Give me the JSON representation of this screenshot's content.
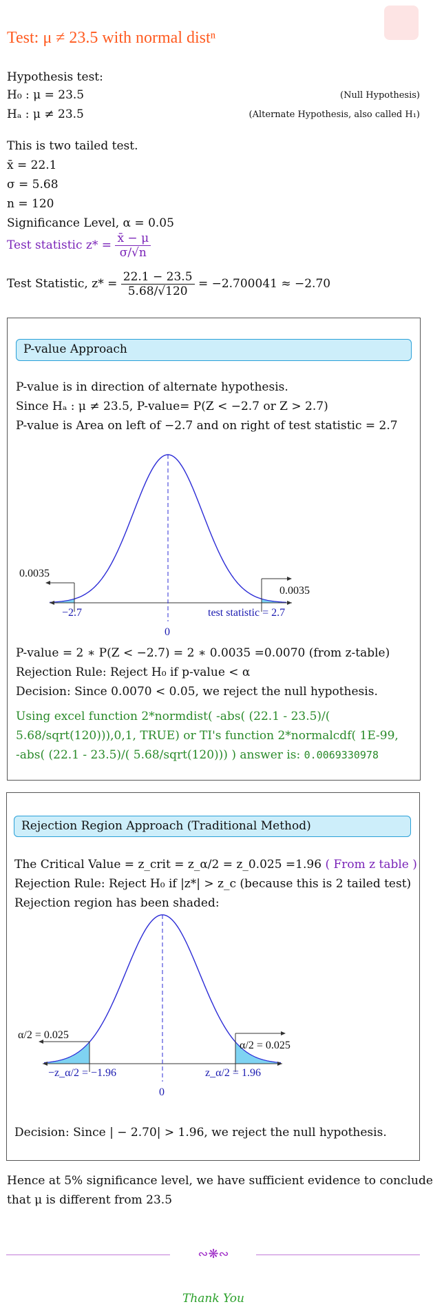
{
  "title": "Test: μ ≠ 23.5 with normal distⁿ",
  "hypothesis": {
    "heading": "Hypothesis test:",
    "h0": "H₀ : μ = 23.5",
    "h0_note": "(Null Hypothesis)",
    "ha": "Hₐ : μ ≠ 23.5",
    "ha_note": "(Alternate Hypothesis, also called H₁)"
  },
  "givens": {
    "tail": "This is two tailed test.",
    "xbar": "x̄ = 22.1",
    "sigma": "σ = 5.68",
    "n": "n = 120",
    "alpha": "Significance Level, α = 0.05"
  },
  "formula": {
    "label": "Test statistic z* =",
    "num": "x̄ − μ",
    "den": "σ/√n"
  },
  "stat": {
    "label": "Test Statistic, z* =",
    "num": "22.1 − 23.5",
    "den": "5.68/√120",
    "result": "= −2.700041 ≈ −2.70"
  },
  "pvalue_section": {
    "header": "P-value Approach",
    "l1": "P-value is in direction of alternate hypothesis.",
    "l2": "Since Hₐ : μ ≠ 23.5, P-value= P(Z < −2.7 or Z > 2.7)",
    "l3": "P-value is Area on left of −2.7 and on right of test statistic = 2.7",
    "graph": {
      "left_area": "0.0035",
      "right_area": "0.0035",
      "left_label": "−2.7",
      "right_label": "test statistic = 2.7",
      "zero": "0"
    },
    "p1": "P-value = 2 ∗ P(Z < −2.7) = 2 ∗ 0.0035 =0.0070 (from z-table)",
    "p2": "Rejection Rule: Reject H₀ if p-value < α",
    "p3": "Decision: Since 0.0070 < 0.05, we reject the null hypothesis.",
    "excel1": "Using excel function 2*normdist( -abs( (22.1 - 23.5)/(",
    "excel2": "5.68/sqrt(120))),0,1, TRUE) or TI's function 2*normalcdf( 1E-99,",
    "excel3": "-abs( (22.1 - 23.5)/( 5.68/sqrt(120))) ) answer is:",
    "excel_answer": "0.0069330978"
  },
  "rr_section": {
    "header": "Rejection Region Approach (Traditional Method)",
    "l1": "The Critical Value = z_crit = z_α/2 = z_0.025 =1.96",
    "l1_note": "( From z table )",
    "l2": "Rejection Rule: Reject H₀ if |z*| > z_c (because this is 2 tailed test)",
    "l3": "Rejection region has been shaded:",
    "graph": {
      "left_area": "α/2 = 0.025",
      "right_area": "α/2 = 0.025",
      "left_label": "−z_α/2 = −1.96",
      "right_label": "z_α/2 = 1.96",
      "zero": "0"
    },
    "decision": "Decision: Since | − 2.70| > 1.96, we reject the null hypothesis."
  },
  "conclusion1": "Hence at 5% significance level, we have sufficient evidence to conclude",
  "conclusion2": "that μ is different from 23.5",
  "ornament": "∾❋∾",
  "thanks": "Thank You",
  "colors": {
    "title": "#ff5a1f",
    "accent": "#7a23b8",
    "curve": "#2b2bd6",
    "shade": "#7fd3f2",
    "green": "#2a8a2a"
  }
}
